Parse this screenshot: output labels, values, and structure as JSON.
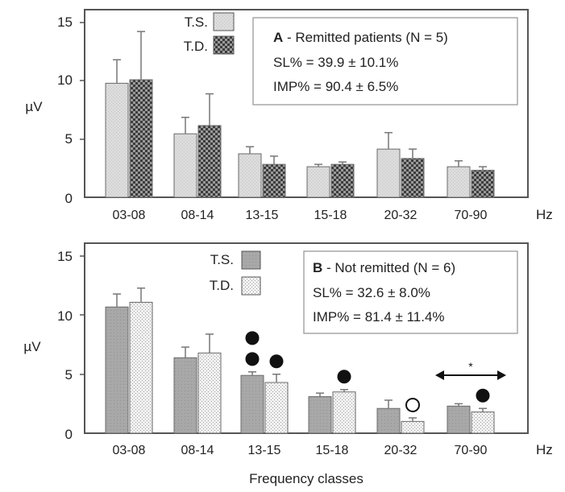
{
  "chart_data": [
    {
      "type": "bar",
      "categories": [
        "03-08",
        "08-14",
        "13-15",
        "15-18",
        "20-32",
        "70-90"
      ],
      "x_unit": "Hz",
      "ylabel": "µV",
      "ylim": [
        0,
        16
      ],
      "yticks": [
        0,
        5,
        10,
        15
      ],
      "legend_position": "top-left (inside)",
      "annotation": {
        "letter": "A",
        "title": " - Remitted patients (N = 5)",
        "line1": "SL% = 39.9 ± 10.1%",
        "line2": "IMP% = 90.4 ± 6.5%"
      },
      "series": [
        {
          "name": "T.S.",
          "fill": "light",
          "values": [
            9.7,
            5.4,
            3.7,
            2.6,
            4.1,
            2.6
          ],
          "errors": [
            2.0,
            1.4,
            0.6,
            0.2,
            1.4,
            0.5
          ]
        },
        {
          "name": "T.D.",
          "fill": "dark-checker",
          "values": [
            10.0,
            6.1,
            2.8,
            2.8,
            3.3,
            2.3
          ],
          "errors": [
            4.1,
            2.7,
            0.7,
            0.2,
            0.8,
            0.3
          ]
        }
      ],
      "markers": []
    },
    {
      "type": "bar",
      "categories": [
        "03-08",
        "08-14",
        "13-15",
        "15-18",
        "20-32",
        "70-90"
      ],
      "x_unit": "Hz",
      "xlabel": "Frequency classes",
      "ylabel": "µV",
      "ylim": [
        0,
        16
      ],
      "yticks": [
        0,
        5,
        10,
        15
      ],
      "legend_position": "top-left (inside)",
      "annotation": {
        "letter": "B",
        "title": " - Not remitted (N = 6)",
        "line1": "SL% = 32.6 ± 8.0%",
        "line2": "IMP% = 81.4 ± 11.4%"
      },
      "series": [
        {
          "name": "T.S.",
          "fill": "medium-gray",
          "values": [
            10.7,
            6.4,
            4.9,
            3.1,
            2.1,
            2.3
          ],
          "errors": [
            1.1,
            0.9,
            0.3,
            0.3,
            0.7,
            0.2
          ]
        },
        {
          "name": "T.D.",
          "fill": "light-dotted",
          "values": [
            11.1,
            6.8,
            4.3,
            3.5,
            1.0,
            1.8
          ],
          "errors": [
            1.2,
            1.6,
            0.7,
            0.2,
            0.3,
            0.3
          ]
        }
      ],
      "markers": [
        {
          "category": "13-15",
          "series": "T.S.",
          "symbols": [
            "filled",
            "filled"
          ]
        },
        {
          "category": "13-15",
          "series": "T.D.",
          "symbols": [
            "filled"
          ]
        },
        {
          "category": "15-18",
          "series": "T.D.",
          "symbols": [
            "filled"
          ]
        },
        {
          "category": "20-32",
          "series": "T.D.",
          "symbols": [
            "open"
          ]
        },
        {
          "category": "70-90",
          "series": "T.D.",
          "symbols": [
            "filled"
          ]
        }
      ],
      "comparison": {
        "category": "70-90",
        "symbol": "*"
      }
    }
  ]
}
